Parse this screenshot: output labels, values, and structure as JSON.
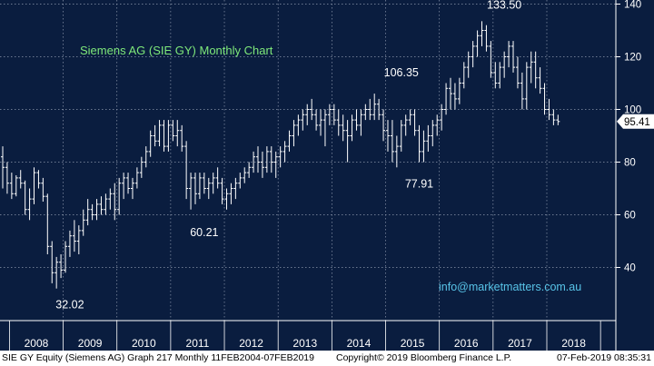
{
  "chart_data": {
    "type": "ohlc",
    "title": "Siemens AG (SIE GY) Monthly Chart",
    "ylim": [
      20,
      145
    ],
    "y_ticks": [
      40,
      60,
      80,
      100,
      120,
      140
    ],
    "x_labels": [
      "2008",
      "2009",
      "2010",
      "2011",
      "2012",
      "2013",
      "2014",
      "2015",
      "2016",
      "2017",
      "2018"
    ],
    "grid": true,
    "last_price": "95.41",
    "annotations": [
      {
        "text": "133.50",
        "x": "2017-03",
        "y": 133.5
      },
      {
        "text": "106.35",
        "x": "2015-04",
        "y": 106.35
      },
      {
        "text": "77.91",
        "x": "2015-08",
        "y": 77.91
      },
      {
        "text": "60.21",
        "x": "2011-08",
        "y": 60.21
      },
      {
        "text": "32.02",
        "x": "2009-02",
        "y": 32.02
      }
    ],
    "watermark": "info@marketmatters.com.au",
    "series": [
      {
        "values": [
          [
            82,
            86,
            70,
            78
          ],
          [
            78,
            80,
            68,
            72
          ],
          [
            72,
            76,
            66,
            68
          ],
          [
            68,
            75,
            67,
            74
          ],
          [
            74,
            77,
            70,
            72
          ],
          [
            72,
            73,
            60,
            62
          ],
          [
            62,
            70,
            58,
            66
          ],
          [
            66,
            78,
            64,
            76
          ],
          [
            76,
            77,
            70,
            72
          ],
          [
            72,
            74,
            65,
            67
          ],
          [
            67,
            68,
            45,
            48
          ],
          [
            48,
            50,
            34,
            38
          ],
          [
            38,
            44,
            32,
            42
          ],
          [
            42,
            45,
            36,
            39
          ],
          [
            39,
            50,
            38,
            48
          ],
          [
            48,
            54,
            44,
            52
          ],
          [
            52,
            58,
            46,
            50
          ],
          [
            50,
            56,
            45,
            54
          ],
          [
            54,
            62,
            52,
            58
          ],
          [
            58,
            66,
            56,
            62
          ],
          [
            62,
            64,
            58,
            60
          ],
          [
            60,
            66,
            58,
            64
          ],
          [
            64,
            67,
            60,
            62
          ],
          [
            62,
            68,
            60,
            66
          ],
          [
            66,
            70,
            62,
            68
          ],
          [
            68,
            72,
            58,
            62
          ],
          [
            62,
            74,
            60,
            72
          ],
          [
            72,
            76,
            66,
            74
          ],
          [
            74,
            76,
            68,
            70
          ],
          [
            70,
            74,
            66,
            72
          ],
          [
            72,
            78,
            70,
            76
          ],
          [
            76,
            82,
            74,
            80
          ],
          [
            80,
            86,
            78,
            84
          ],
          [
            84,
            92,
            82,
            90
          ],
          [
            90,
            94,
            86,
            88
          ],
          [
            88,
            96,
            86,
            94
          ],
          [
            94,
            96,
            84,
            86
          ],
          [
            86,
            96,
            84,
            94
          ],
          [
            94,
            96,
            88,
            90
          ],
          [
            90,
            96,
            86,
            92
          ],
          [
            92,
            94,
            84,
            86
          ],
          [
            86,
            88,
            66,
            70
          ],
          [
            70,
            76,
            62,
            74
          ],
          [
            74,
            76,
            64,
            68
          ],
          [
            68,
            76,
            66,
            74
          ],
          [
            74,
            76,
            68,
            70
          ],
          [
            70,
            74,
            66,
            72
          ],
          [
            72,
            76,
            68,
            74
          ],
          [
            74,
            78,
            70,
            72
          ],
          [
            72,
            74,
            64,
            66
          ],
          [
            66,
            70,
            62,
            68
          ],
          [
            68,
            72,
            64,
            70
          ],
          [
            70,
            74,
            66,
            72
          ],
          [
            72,
            76,
            70,
            74
          ],
          [
            74,
            78,
            72,
            76
          ],
          [
            76,
            80,
            74,
            78
          ],
          [
            78,
            84,
            76,
            82
          ],
          [
            82,
            86,
            76,
            80
          ],
          [
            80,
            84,
            74,
            78
          ],
          [
            78,
            86,
            76,
            84
          ],
          [
            84,
            86,
            76,
            80
          ],
          [
            80,
            84,
            74,
            82
          ],
          [
            82,
            86,
            78,
            84
          ],
          [
            84,
            88,
            80,
            86
          ],
          [
            86,
            92,
            84,
            90
          ],
          [
            90,
            96,
            86,
            94
          ],
          [
            94,
            98,
            90,
            96
          ],
          [
            96,
            100,
            92,
            98
          ],
          [
            98,
            102,
            94,
            100
          ],
          [
            100,
            104,
            96,
            98
          ],
          [
            98,
            100,
            92,
            94
          ],
          [
            94,
            100,
            90,
            96
          ],
          [
            96,
            100,
            86,
            98
          ],
          [
            98,
            102,
            94,
            100
          ],
          [
            100,
            102,
            94,
            96
          ],
          [
            96,
            100,
            90,
            94
          ],
          [
            94,
            98,
            88,
            92
          ],
          [
            92,
            96,
            80,
            90
          ],
          [
            90,
            98,
            88,
            96
          ],
          [
            96,
            100,
            92,
            94
          ],
          [
            94,
            100,
            90,
            98
          ],
          [
            98,
            102,
            96,
            100
          ],
          [
            100,
            104,
            96,
            98
          ],
          [
            98,
            106,
            96,
            102
          ],
          [
            102,
            104,
            96,
            98
          ],
          [
            98,
            100,
            88,
            92
          ],
          [
            92,
            96,
            84,
            90
          ],
          [
            90,
            96,
            80,
            84
          ],
          [
            84,
            90,
            78,
            86
          ],
          [
            86,
            96,
            84,
            94
          ],
          [
            94,
            98,
            90,
            96
          ],
          [
            96,
            100,
            94,
            98
          ],
          [
            98,
            100,
            90,
            92
          ],
          [
            92,
            94,
            80,
            84
          ],
          [
            84,
            92,
            80,
            88
          ],
          [
            88,
            94,
            84,
            90
          ],
          [
            90,
            96,
            86,
            94
          ],
          [
            94,
            98,
            90,
            96
          ],
          [
            96,
            102,
            92,
            100
          ],
          [
            100,
            110,
            98,
            108
          ],
          [
            108,
            112,
            100,
            106
          ],
          [
            106,
            110,
            100,
            104
          ],
          [
            104,
            112,
            102,
            110
          ],
          [
            110,
            118,
            108,
            116
          ],
          [
            116,
            122,
            112,
            120
          ],
          [
            120,
            126,
            116,
            124
          ],
          [
            124,
            130,
            120,
            128
          ],
          [
            128,
            133.5,
            124,
            130
          ],
          [
            130,
            132,
            122,
            124
          ],
          [
            124,
            126,
            112,
            114
          ],
          [
            114,
            118,
            108,
            110
          ],
          [
            110,
            118,
            108,
            116
          ],
          [
            116,
            122,
            112,
            120
          ],
          [
            120,
            126,
            116,
            124
          ],
          [
            124,
            126,
            114,
            116
          ],
          [
            116,
            120,
            108,
            110
          ],
          [
            110,
            114,
            100,
            104
          ],
          [
            104,
            118,
            100,
            116
          ],
          [
            116,
            122,
            110,
            118
          ],
          [
            118,
            122,
            108,
            112
          ],
          [
            112,
            116,
            106,
            108
          ],
          [
            108,
            110,
            98,
            100
          ],
          [
            100,
            104,
            96,
            98
          ],
          [
            98,
            100,
            94,
            96
          ],
          [
            96,
            98,
            94,
            95.41
          ]
        ]
      }
    ]
  },
  "footer": {
    "left": "SIE GY Equity (Siemens AG) Graph 217  Monthly 11FEB2004-07FEB2019",
    "middle": "Copyright© 2019 Bloomberg Finance L.P.",
    "right": "07-Feb-2019 08:35:31"
  }
}
